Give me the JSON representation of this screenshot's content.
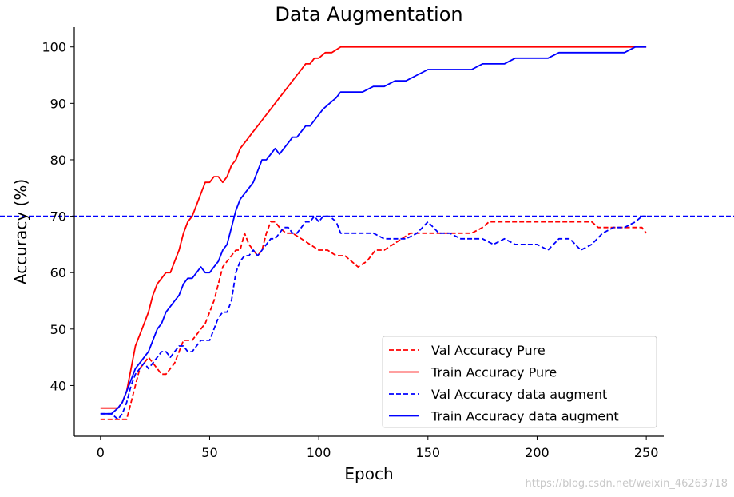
{
  "chart_data": {
    "type": "line",
    "title": "Data Augmentation",
    "xlabel": "Epoch",
    "ylabel": "Accuracy (%)",
    "xlim": [
      -12,
      258
    ],
    "ylim": [
      31,
      103.5
    ],
    "xticks": [
      0,
      50,
      100,
      150,
      200,
      250
    ],
    "yticks": [
      40,
      50,
      60,
      70,
      80,
      90,
      100
    ],
    "grid": false,
    "legend_position": "lower-right",
    "reference_line": {
      "y": 70,
      "color": "#0000ff",
      "style": "dashed"
    },
    "series": [
      {
        "name": "Val Accuracy Pure",
        "color": "#ff0000",
        "style": "dashed",
        "x": [
          0,
          5,
          10,
          12,
          14,
          16,
          18,
          20,
          22,
          24,
          26,
          28,
          30,
          32,
          34,
          36,
          38,
          40,
          42,
          44,
          46,
          48,
          50,
          52,
          54,
          56,
          58,
          60,
          62,
          64,
          66,
          68,
          70,
          72,
          74,
          76,
          78,
          80,
          82,
          85,
          88,
          92,
          96,
          100,
          104,
          108,
          112,
          115,
          118,
          122,
          126,
          130,
          134,
          138,
          142,
          146,
          150,
          155,
          160,
          165,
          170,
          175,
          178,
          185,
          195,
          205,
          215,
          225,
          228,
          240,
          248,
          250
        ],
        "y": [
          34,
          34,
          34,
          34,
          37,
          40,
          43,
          44,
          45,
          44,
          43,
          42,
          42,
          43,
          44,
          46,
          48,
          48,
          48,
          49,
          50,
          51,
          53,
          55,
          58,
          61,
          62,
          63,
          64,
          64,
          67,
          65,
          64,
          63,
          64,
          67,
          69,
          69,
          68,
          67,
          67,
          66,
          65,
          64,
          64,
          63,
          63,
          62,
          61,
          62,
          64,
          64,
          65,
          66,
          67,
          67,
          67,
          67,
          67,
          67,
          67,
          68,
          69,
          69,
          69,
          69,
          69,
          69,
          68,
          68,
          68,
          67
        ]
      },
      {
        "name": "Train Accuracy Pure",
        "color": "#ff0000",
        "style": "solid",
        "x": [
          0,
          5,
          8,
          10,
          12,
          14,
          16,
          18,
          20,
          22,
          24,
          26,
          28,
          30,
          32,
          34,
          36,
          38,
          40,
          42,
          44,
          46,
          48,
          50,
          52,
          54,
          56,
          58,
          60,
          62,
          64,
          66,
          68,
          70,
          72,
          74,
          76,
          78,
          80,
          82,
          84,
          86,
          88,
          90,
          92,
          94,
          96,
          98,
          100,
          103,
          106,
          110,
          120,
          140,
          160,
          180,
          200,
          220,
          240,
          250
        ],
        "y": [
          36,
          36,
          36,
          37,
          39,
          43,
          47,
          49,
          51,
          53,
          56,
          58,
          59,
          60,
          60,
          62,
          64,
          67,
          69,
          70,
          72,
          74,
          76,
          76,
          77,
          77,
          76,
          77,
          79,
          80,
          82,
          83,
          84,
          85,
          86,
          87,
          88,
          89,
          90,
          91,
          92,
          93,
          94,
          95,
          96,
          97,
          97,
          98,
          98,
          99,
          99,
          100,
          100,
          100,
          100,
          100,
          100,
          100,
          100,
          100
        ]
      },
      {
        "name": "Val Accuracy data augment",
        "color": "#0000ff",
        "style": "dashed",
        "x": [
          0,
          5,
          8,
          10,
          12,
          14,
          16,
          18,
          20,
          22,
          24,
          26,
          28,
          30,
          32,
          34,
          36,
          38,
          40,
          42,
          44,
          46,
          48,
          50,
          52,
          54,
          56,
          58,
          60,
          62,
          64,
          66,
          68,
          70,
          72,
          74,
          76,
          78,
          80,
          82,
          84,
          86,
          88,
          90,
          92,
          94,
          96,
          98,
          100,
          102,
          105,
          108,
          110,
          115,
          120,
          125,
          130,
          135,
          140,
          145,
          150,
          155,
          160,
          165,
          170,
          175,
          180,
          185,
          190,
          195,
          200,
          205,
          210,
          215,
          220,
          225,
          230,
          235,
          240,
          245,
          248,
          250
        ],
        "y": [
          35,
          35,
          34,
          35,
          37,
          40,
          42,
          43,
          44,
          43,
          44,
          45,
          46,
          46,
          45,
          46,
          47,
          47,
          46,
          46,
          47,
          48,
          48,
          48,
          50,
          52,
          53,
          53,
          55,
          60,
          62,
          63,
          63,
          64,
          63,
          64,
          65,
          66,
          66,
          67,
          68,
          68,
          67,
          67,
          68,
          69,
          69,
          70,
          69,
          70,
          70,
          69,
          67,
          67,
          67,
          67,
          66,
          66,
          66,
          67,
          69,
          67,
          67,
          66,
          66,
          66,
          65,
          66,
          65,
          65,
          65,
          64,
          66,
          66,
          64,
          65,
          67,
          68,
          68,
          69,
          70,
          70
        ]
      },
      {
        "name": "Train Accuracy data augment",
        "color": "#0000ff",
        "style": "solid",
        "x": [
          0,
          5,
          8,
          10,
          12,
          14,
          16,
          18,
          20,
          22,
          24,
          26,
          28,
          30,
          32,
          34,
          36,
          38,
          40,
          42,
          44,
          46,
          48,
          50,
          52,
          54,
          56,
          58,
          60,
          62,
          64,
          66,
          68,
          70,
          72,
          74,
          76,
          78,
          80,
          82,
          84,
          86,
          88,
          90,
          92,
          94,
          96,
          98,
          100,
          102,
          105,
          108,
          110,
          115,
          120,
          125,
          130,
          135,
          140,
          145,
          150,
          155,
          160,
          165,
          170,
          175,
          180,
          185,
          190,
          195,
          200,
          205,
          210,
          215,
          220,
          225,
          230,
          235,
          240,
          245,
          250
        ],
        "y": [
          35,
          35,
          36,
          37,
          39,
          41,
          43,
          44,
          45,
          46,
          48,
          50,
          51,
          53,
          54,
          55,
          56,
          58,
          59,
          59,
          60,
          61,
          60,
          60,
          61,
          62,
          64,
          65,
          68,
          71,
          73,
          74,
          75,
          76,
          78,
          80,
          80,
          81,
          82,
          81,
          82,
          83,
          84,
          84,
          85,
          86,
          86,
          87,
          88,
          89,
          90,
          91,
          92,
          92,
          92,
          93,
          93,
          94,
          94,
          95,
          96,
          96,
          96,
          96,
          96,
          97,
          97,
          97,
          98,
          98,
          98,
          98,
          99,
          99,
          99,
          99,
          99,
          99,
          99,
          100,
          100
        ]
      }
    ]
  },
  "watermark": "https://blog.csdn.net/weixin_46263718"
}
